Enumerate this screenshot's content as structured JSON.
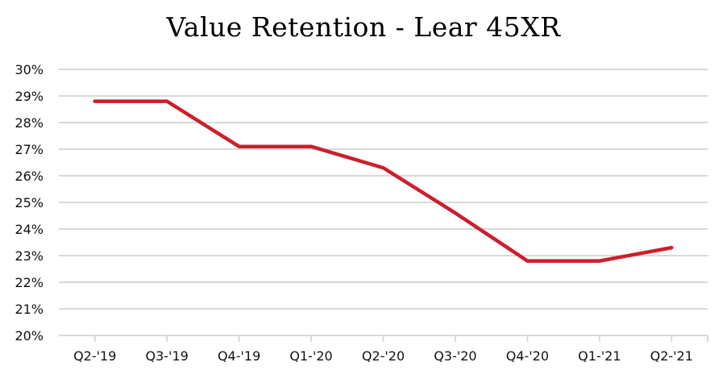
{
  "chart_data": {
    "type": "line",
    "title": "Value Retention - Lear 45XR",
    "xlabel": "",
    "ylabel": "",
    "categories": [
      "Q2-'19",
      "Q3-'19",
      "Q4-'19",
      "Q1-'20",
      "Q2-'20",
      "Q3-'20",
      "Q4-'20",
      "Q1-'21",
      "Q2-'21"
    ],
    "series": [
      {
        "values": [
          28.8,
          28.8,
          27.1,
          27.1,
          26.3,
          24.6,
          22.8,
          22.8,
          23.3
        ],
        "color": "#cc1f2d"
      }
    ],
    "ylim": [
      20,
      30
    ],
    "yticks": [
      "20%",
      "21%",
      "22%",
      "23%",
      "24%",
      "25%",
      "26%",
      "27%",
      "28%",
      "29%",
      "30%"
    ],
    "grid": true,
    "legend": "none",
    "gridline_color": "#d9d9d9"
  }
}
